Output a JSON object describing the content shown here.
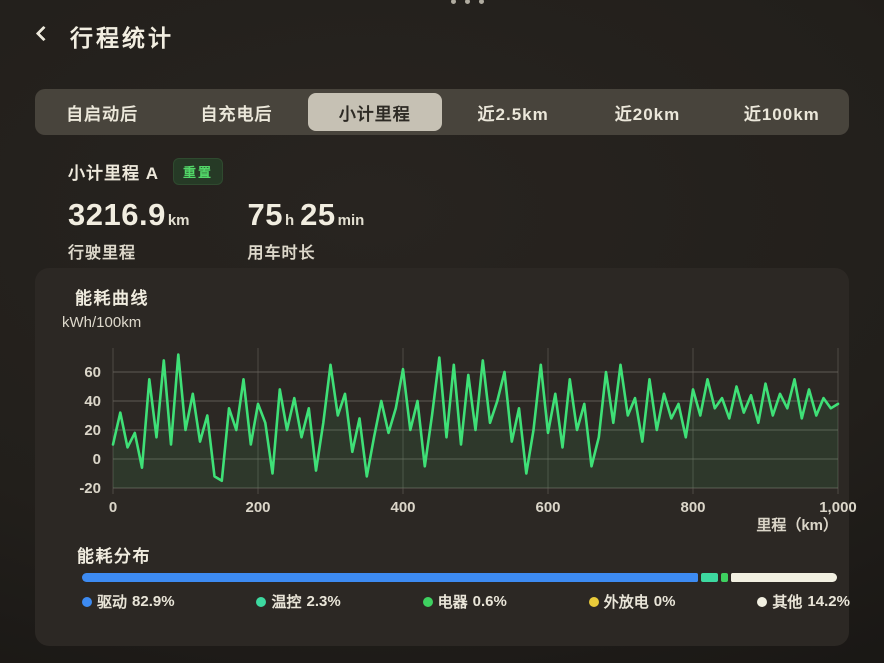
{
  "header": {
    "title": "行程统计"
  },
  "tabs": [
    {
      "label": "自启动后",
      "selected": false
    },
    {
      "label": "自充电后",
      "selected": false
    },
    {
      "label": "小计里程",
      "selected": true
    },
    {
      "label": "近2.5km",
      "selected": false
    },
    {
      "label": "近20km",
      "selected": false
    },
    {
      "label": "近100km",
      "selected": false
    }
  ],
  "trip": {
    "name": "小计里程 A",
    "reset_label": "重置",
    "distance": {
      "value": "3216.9",
      "unit": "km",
      "label": "行驶里程"
    },
    "duration": {
      "h_value": "75",
      "h_unit": "h",
      "m_value": "25",
      "m_unit": "min",
      "label": "用车时长"
    }
  },
  "chart_data": {
    "type": "line",
    "title": "能耗曲线",
    "ylabel": "kWh/100km",
    "xlabel": "里程（km）",
    "x_start": 0,
    "x_step": 10,
    "xlim": [
      0,
      1000
    ],
    "ylim": [
      -20,
      75
    ],
    "x_ticks": [
      0,
      200,
      400,
      600,
      800,
      1000
    ],
    "x_tick_labels": [
      "0",
      "200",
      "400",
      "600",
      "800",
      "1,000"
    ],
    "y_ticks": [
      60,
      40,
      20,
      0,
      -20
    ],
    "grid": true,
    "line_color": "#3fe077",
    "grid_color": "#6b675f",
    "tick_color": "#dbd6c9",
    "values": [
      10,
      32,
      8,
      18,
      -6,
      55,
      15,
      68,
      10,
      72,
      20,
      45,
      12,
      30,
      -12,
      -15,
      35,
      20,
      55,
      10,
      38,
      25,
      -10,
      48,
      20,
      42,
      15,
      35,
      -8,
      25,
      65,
      30,
      45,
      5,
      28,
      -12,
      15,
      40,
      18,
      35,
      62,
      20,
      40,
      -5,
      30,
      70,
      15,
      65,
      10,
      58,
      20,
      68,
      25,
      40,
      60,
      12,
      35,
      -10,
      20,
      65,
      18,
      45,
      8,
      55,
      20,
      38,
      -5,
      15,
      60,
      25,
      65,
      30,
      42,
      12,
      55,
      20,
      45,
      28,
      38,
      15,
      48,
      30,
      55,
      35,
      42,
      28,
      50,
      32,
      44,
      25,
      52,
      30,
      45,
      35,
      55,
      28,
      48,
      30,
      42,
      35,
      38
    ]
  },
  "distribution": {
    "title": "能耗分布",
    "items": [
      {
        "label": "驱动",
        "pct": "82.9%",
        "value": 82.9,
        "color": "#3d8bf2"
      },
      {
        "label": "温控",
        "pct": "2.3%",
        "value": 2.3,
        "color": "#3dd9a0"
      },
      {
        "label": "电器",
        "pct": "0.6%",
        "value": 0.6,
        "color": "#3ed160"
      },
      {
        "label": "外放电",
        "pct": "0%",
        "value": 0,
        "color": "#e9cb3a"
      },
      {
        "label": "其他",
        "pct": "14.2%",
        "value": 14.2,
        "color": "#f2f0e1"
      }
    ]
  }
}
